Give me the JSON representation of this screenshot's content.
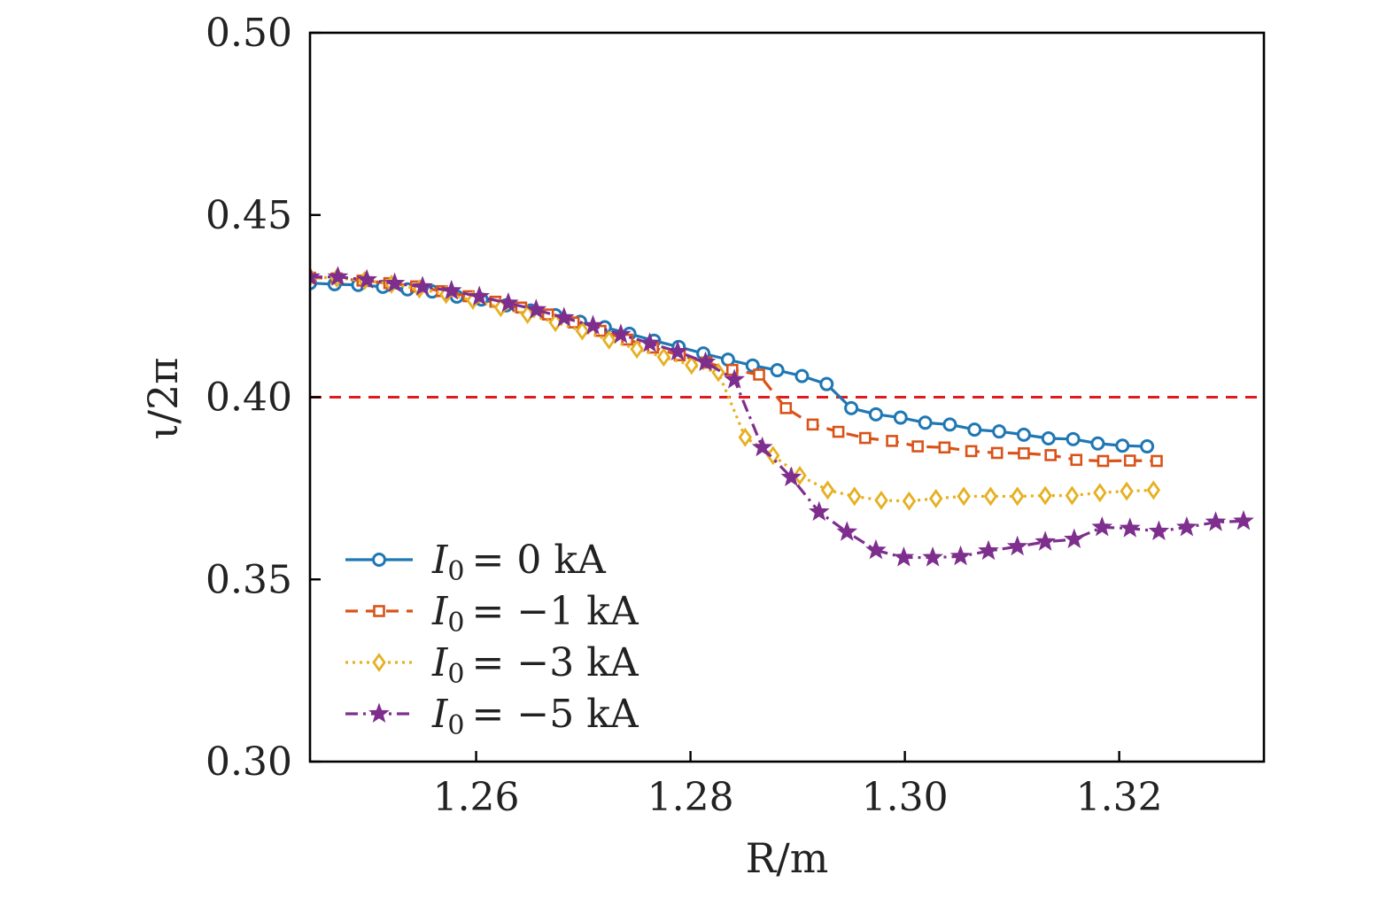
{
  "chart_data": {
    "type": "line",
    "title": "",
    "xlabel": "R/m",
    "ylabel": "ι/2π",
    "xlim": [
      1.2445,
      1.3335
    ],
    "ylim": [
      0.3,
      0.5
    ],
    "xticks": [
      1.26,
      1.28,
      1.3,
      1.32
    ],
    "xtick_labels": [
      "1.26",
      "1.28",
      "1.30",
      "1.32"
    ],
    "yticks": [
      0.3,
      0.35,
      0.4,
      0.45,
      0.5
    ],
    "ytick_labels": [
      "0.30",
      "0.35",
      "0.40",
      "0.45",
      "0.50"
    ],
    "grid": false,
    "legend_position": "bottom-left",
    "reference_line": {
      "y": 0.4,
      "color": "#e31a1c",
      "style": "dashed"
    },
    "series": [
      {
        "name": "I0 = 0 kA",
        "legend_text": "= 0 kA",
        "color": "#1f77b4",
        "marker": "circle",
        "dash": "solid",
        "points": [
          [
            1.2445,
            0.4313
          ],
          [
            1.2468,
            0.431
          ],
          [
            1.249,
            0.4308
          ],
          [
            1.2513,
            0.4303
          ],
          [
            1.2536,
            0.4296
          ],
          [
            1.2559,
            0.429
          ],
          [
            1.2582,
            0.4276
          ],
          [
            1.2605,
            0.4268
          ],
          [
            1.2628,
            0.4252
          ],
          [
            1.2651,
            0.4238
          ],
          [
            1.2674,
            0.4225
          ],
          [
            1.2697,
            0.4207
          ],
          [
            1.272,
            0.4192
          ],
          [
            1.2743,
            0.4174
          ],
          [
            1.2766,
            0.4155
          ],
          [
            1.2789,
            0.4138
          ],
          [
            1.2812,
            0.412
          ],
          [
            1.2835,
            0.4103
          ],
          [
            1.2858,
            0.4087
          ],
          [
            1.2881,
            0.4074
          ],
          [
            1.2904,
            0.4058
          ],
          [
            1.2927,
            0.4036
          ],
          [
            1.295,
            0.397
          ],
          [
            1.2973,
            0.3953
          ],
          [
            1.2996,
            0.3944
          ],
          [
            1.3019,
            0.393
          ],
          [
            1.3042,
            0.3925
          ],
          [
            1.3065,
            0.3911
          ],
          [
            1.3088,
            0.3906
          ],
          [
            1.3111,
            0.3897
          ],
          [
            1.3134,
            0.3887
          ],
          [
            1.3157,
            0.3885
          ],
          [
            1.318,
            0.3873
          ],
          [
            1.3203,
            0.3867
          ],
          [
            1.3226,
            0.3865
          ]
        ]
      },
      {
        "name": "I0 = −1 kA",
        "legend_text": "= −1 kA",
        "color": "#d95319",
        "marker": "square",
        "dash": "dashed",
        "points": [
          [
            1.2445,
            0.4328
          ],
          [
            1.247,
            0.4326
          ],
          [
            1.2494,
            0.432
          ],
          [
            1.2519,
            0.4313
          ],
          [
            1.2544,
            0.4304
          ],
          [
            1.2568,
            0.4291
          ],
          [
            1.2593,
            0.4277
          ],
          [
            1.2618,
            0.4262
          ],
          [
            1.2642,
            0.4246
          ],
          [
            1.2667,
            0.4227
          ],
          [
            1.2691,
            0.4205
          ],
          [
            1.2716,
            0.4182
          ],
          [
            1.2741,
            0.4158
          ],
          [
            1.2765,
            0.4136
          ],
          [
            1.279,
            0.4115
          ],
          [
            1.2815,
            0.4095
          ],
          [
            1.2839,
            0.4075
          ],
          [
            1.2864,
            0.4062
          ],
          [
            1.2889,
            0.397
          ],
          [
            1.2914,
            0.3925
          ],
          [
            1.2938,
            0.3905
          ],
          [
            1.2963,
            0.3888
          ],
          [
            1.2988,
            0.388
          ],
          [
            1.3012,
            0.3865
          ],
          [
            1.3037,
            0.3862
          ],
          [
            1.3062,
            0.3852
          ],
          [
            1.3086,
            0.3847
          ],
          [
            1.3111,
            0.3846
          ],
          [
            1.3136,
            0.3841
          ],
          [
            1.316,
            0.3828
          ],
          [
            1.3185,
            0.3825
          ],
          [
            1.321,
            0.3826
          ],
          [
            1.3235,
            0.3825
          ]
        ]
      },
      {
        "name": "I0 = −3 kA",
        "legend_text": "= −3 kA",
        "color": "#e6b020",
        "marker": "diamond",
        "dash": "dotted",
        "points": [
          [
            1.2445,
            0.433
          ],
          [
            1.247,
            0.4327
          ],
          [
            1.2496,
            0.432
          ],
          [
            1.2521,
            0.431
          ],
          [
            1.2547,
            0.4297
          ],
          [
            1.2572,
            0.4282
          ],
          [
            1.2597,
            0.4266
          ],
          [
            1.2623,
            0.4246
          ],
          [
            1.2648,
            0.4227
          ],
          [
            1.2674,
            0.4205
          ],
          [
            1.2699,
            0.4182
          ],
          [
            1.2724,
            0.4157
          ],
          [
            1.275,
            0.4132
          ],
          [
            1.2775,
            0.411
          ],
          [
            1.2801,
            0.4088
          ],
          [
            1.2826,
            0.4068
          ],
          [
            1.2851,
            0.389
          ],
          [
            1.2877,
            0.384
          ],
          [
            1.2902,
            0.3785
          ],
          [
            1.2928,
            0.3745
          ],
          [
            1.2953,
            0.3728
          ],
          [
            1.2978,
            0.3717
          ],
          [
            1.3004,
            0.3715
          ],
          [
            1.3029,
            0.3722
          ],
          [
            1.3055,
            0.3728
          ],
          [
            1.308,
            0.3728
          ],
          [
            1.3105,
            0.3728
          ],
          [
            1.3131,
            0.373
          ],
          [
            1.3156,
            0.373
          ],
          [
            1.3182,
            0.3738
          ],
          [
            1.3207,
            0.3742
          ],
          [
            1.3232,
            0.3745
          ]
        ]
      },
      {
        "name": "I0 = −5 kA",
        "legend_text": "= −5 kA",
        "color": "#7e2f8e",
        "marker": "star",
        "dash": "dashdot",
        "points": [
          [
            1.2445,
            0.433
          ],
          [
            1.2471,
            0.433
          ],
          [
            1.2498,
            0.4322
          ],
          [
            1.2524,
            0.4312
          ],
          [
            1.255,
            0.4303
          ],
          [
            1.2577,
            0.4292
          ],
          [
            1.2603,
            0.4276
          ],
          [
            1.263,
            0.4258
          ],
          [
            1.2656,
            0.424
          ],
          [
            1.2682,
            0.4218
          ],
          [
            1.2709,
            0.4196
          ],
          [
            1.2735,
            0.4172
          ],
          [
            1.2762,
            0.4148
          ],
          [
            1.2788,
            0.4125
          ],
          [
            1.2814,
            0.4096
          ],
          [
            1.2841,
            0.4048
          ],
          [
            1.2867,
            0.3862
          ],
          [
            1.2894,
            0.378
          ],
          [
            1.292,
            0.3685
          ],
          [
            1.2946,
            0.363
          ],
          [
            1.2973,
            0.358
          ],
          [
            1.2999,
            0.356
          ],
          [
            1.3026,
            0.356
          ],
          [
            1.3052,
            0.3563
          ],
          [
            1.3078,
            0.3578
          ],
          [
            1.3105,
            0.359
          ],
          [
            1.3131,
            0.3603
          ],
          [
            1.3158,
            0.361
          ],
          [
            1.3184,
            0.3643
          ],
          [
            1.321,
            0.364
          ],
          [
            1.3237,
            0.3632
          ],
          [
            1.3263,
            0.3643
          ],
          [
            1.329,
            0.3657
          ],
          [
            1.3316,
            0.366
          ]
        ]
      }
    ]
  }
}
